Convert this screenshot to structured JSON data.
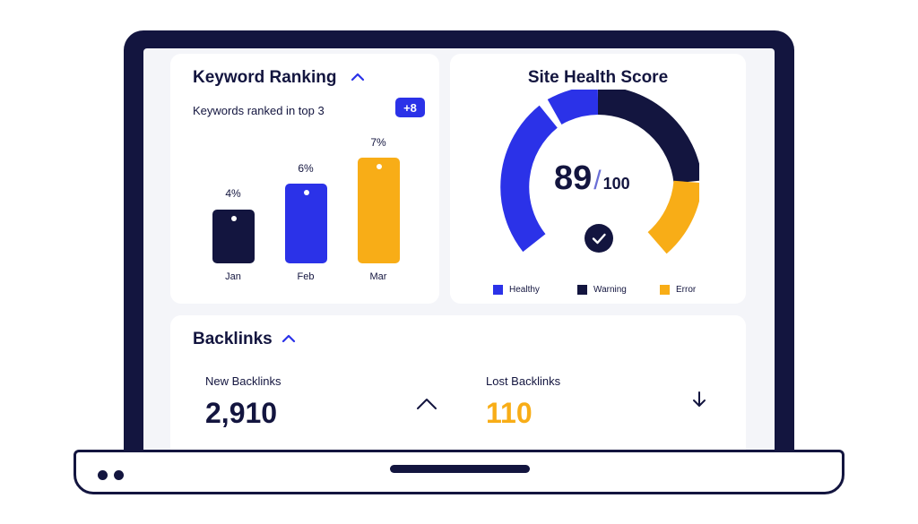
{
  "keyword_ranking": {
    "title": "Keyword Ranking",
    "subtitle": "Keywords ranked in top 3",
    "badge": "+8",
    "bars": [
      {
        "label": "4%",
        "category": "Jan",
        "value": 4,
        "color": "#13153f"
      },
      {
        "label": "6%",
        "category": "Feb",
        "value": 6,
        "color": "#2b32e8"
      },
      {
        "label": "7%",
        "category": "Mar",
        "value": 7,
        "color": "#f8ad17"
      }
    ]
  },
  "site_health": {
    "title": "Site Health Score",
    "score": "89",
    "slash": "/",
    "max": "100",
    "segments": [
      {
        "name": "Healthy",
        "color": "#2b32e8"
      },
      {
        "name": "Warning",
        "color": "#13153f"
      },
      {
        "name": "Error",
        "color": "#f8ad17"
      }
    ],
    "legend": [
      "Healthy",
      "Warning",
      "Error"
    ]
  },
  "backlinks": {
    "title": "Backlinks",
    "new_label": "New Backlinks",
    "new_value": "2,910",
    "lost_label": "Lost Backlinks",
    "lost_value": "110"
  },
  "colors": {
    "navy": "#13153f",
    "blue": "#2b32e8",
    "orange": "#f8ad17",
    "screen_bg": "#f4f5f9"
  },
  "icons": [
    "chevron-up-icon",
    "arrow-down-icon",
    "checkmark-icon"
  ]
}
